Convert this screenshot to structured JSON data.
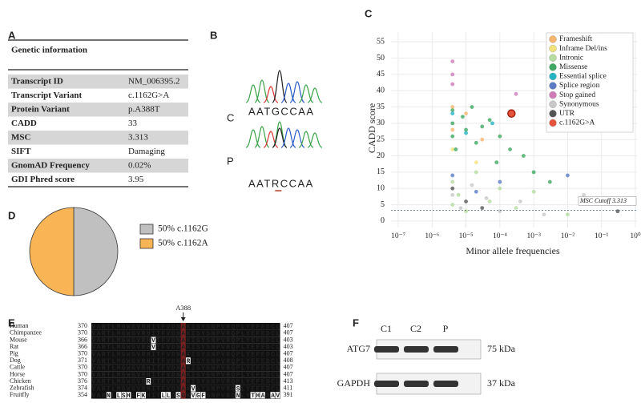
{
  "panel_labels": [
    "A",
    "B",
    "C",
    "D",
    "E",
    "F"
  ],
  "table": {
    "title": "Genetic information",
    "rows": [
      [
        "Transcript ID",
        "NM_006395.2"
      ],
      [
        "Transcript Variant",
        "c.1162G>A"
      ],
      [
        "Protein Variant",
        "p.A388T"
      ],
      [
        "CADD",
        "33"
      ],
      [
        "MSC",
        "3.313"
      ],
      [
        "SIFT",
        "Damaging"
      ],
      [
        "GnomAD Frequency",
        "0.02%"
      ],
      [
        "GDI Phred score",
        "3.95"
      ]
    ]
  },
  "chromatogram": {
    "rows": [
      {
        "label": "C",
        "sequence": "AATGCCAA"
      },
      {
        "label": "P",
        "sequence": "AATRCCAA"
      }
    ]
  },
  "chart_data": [
    {
      "type": "scatter",
      "xlabel": "Minor allele frequencies",
      "ylabel": "CADD score",
      "log_x": true,
      "xlim": [
        1e-07,
        1
      ],
      "xticks": [
        {
          "value": 1e-07,
          "label": "10⁻⁷"
        },
        {
          "value": 1e-06,
          "label": "10⁻⁶"
        },
        {
          "value": 1e-05,
          "label": "10⁻⁵"
        },
        {
          "value": 0.0001,
          "label": "10⁻⁴"
        },
        {
          "value": 0.001,
          "label": "10⁻³"
        },
        {
          "value": 0.01,
          "label": "10⁻²"
        },
        {
          "value": 0.1,
          "label": "10⁻¹"
        },
        {
          "value": 1,
          "label": "10⁰"
        }
      ],
      "ylim": [
        -2,
        58
      ],
      "yticks": [
        0,
        5,
        10,
        15,
        20,
        25,
        30,
        35,
        40,
        45,
        50,
        55
      ],
      "grid": true,
      "legend": "upper right",
      "cutoff": 3.313,
      "cutoff_label": "MSC Cutoff 3.313",
      "series": [
        {
          "name": "Frameshift",
          "color": "#f7b56e",
          "x": [
            4e-06,
            4e-06,
            1e-05,
            3e-05
          ],
          "values": [
            35,
            28,
            33,
            25
          ]
        },
        {
          "name": "Inframe Del/ins",
          "color": "#f2e27a",
          "x": [
            4e-06,
            2e-05
          ],
          "values": [
            22,
            18
          ]
        },
        {
          "name": "Intronic",
          "color": "#b7dba0",
          "x": [
            4e-06,
            4e-06,
            6e-06,
            1e-05,
            2e-05,
            5e-05,
            0.0001,
            0.0003,
            0.001,
            0.01
          ],
          "values": [
            5,
            12,
            8,
            3,
            15,
            6,
            10,
            4,
            9,
            2
          ]
        },
        {
          "name": "Missense",
          "color": "#3fa862",
          "x": [
            4e-06,
            4e-06,
            4e-06,
            5e-06,
            8e-06,
            1e-05,
            1.5e-05,
            2e-05,
            3e-05,
            5e-05,
            8e-05,
            0.0001,
            0.0002,
            0.0005,
            0.001,
            0.003
          ],
          "values": [
            34,
            30,
            26,
            22,
            32,
            28,
            35,
            24,
            29,
            31,
            18,
            26,
            22,
            20,
            15,
            12
          ]
        },
        {
          "name": "Essential splice",
          "color": "#25b4c2",
          "x": [
            4e-06,
            1e-05,
            6e-05
          ],
          "values": [
            33,
            27,
            30
          ]
        },
        {
          "name": "Splice region",
          "color": "#5a7cc4",
          "x": [
            4e-06,
            2e-05,
            0.0001,
            0.01,
            0.2
          ],
          "values": [
            14,
            9,
            12,
            14,
            6
          ]
        },
        {
          "name": "Stop gained",
          "color": "#d07ab8",
          "x": [
            4e-06,
            4e-06,
            4e-06,
            0.0003
          ],
          "values": [
            49,
            45,
            42,
            39
          ]
        },
        {
          "name": "Synonymous",
          "color": "#c8c8c8",
          "x": [
            4e-06,
            7e-06,
            1.5e-05,
            4e-05,
            0.0001,
            0.0004,
            0.002,
            0.03
          ],
          "values": [
            8,
            4,
            11,
            7,
            3,
            6,
            2,
            8
          ]
        },
        {
          "name": "UTR",
          "color": "#555555",
          "x": [
            4e-06,
            1e-05,
            3e-05,
            0.3
          ],
          "values": [
            10,
            6,
            4,
            3
          ]
        },
        {
          "name": "c.1162G>A",
          "color": "#e5533d",
          "x": [
            0.00022
          ],
          "values": [
            33
          ]
        }
      ]
    },
    {
      "type": "pie",
      "categories": [
        "50% c.1162G",
        "50% c.1162A"
      ],
      "values": [
        50,
        50
      ],
      "colors": [
        "#c0c0c0",
        "#f9b555"
      ]
    }
  ],
  "alignment": {
    "marker": "A388",
    "rows": [
      {
        "species": "Human",
        "start": 370,
        "sequence": "VARTLMGWGVRHITFVDNAKISYSNPVRQPLYEFEDCL",
        "end": 407
      },
      {
        "species": "Chimpanzee",
        "start": 370,
        "sequence": "VARTLMGWGVRHITFVDNAKISYSNPVRQPLYEFEDCL",
        "end": 407
      },
      {
        "species": "Mouse",
        "start": 366,
        "sequence": "VARTLMGWGVRHVTFVDNAKISYSNPVRQPLYEFEDCL",
        "end": 403
      },
      {
        "species": "Rat",
        "start": 366,
        "sequence": "VARTLMGWGVRHVTFVDNAKISYSNPVRQPLYEFEDCL",
        "end": 403
      },
      {
        "species": "Pig",
        "start": 370,
        "sequence": "VARTLMGWGVRHITFVDNAKISYSNPVRQPLYEFEDCL",
        "end": 407
      },
      {
        "species": "Dog",
        "start": 371,
        "sequence": "VARTLMGWGVRHITFVDNARISYSNPVRQPLYEFEDCL",
        "end": 408
      },
      {
        "species": "Cattle",
        "start": 370,
        "sequence": "VARTLMGWGVRHITFVDNAKISYSNPVRQPLYEFEDCL",
        "end": 407
      },
      {
        "species": "Horse",
        "start": 370,
        "sequence": "VARTLMGWGVRHITFVDNAKISYSNPVRQPLYEFEDCL",
        "end": 407
      },
      {
        "species": "Chicken",
        "start": 376,
        "sequence": "VARTLMGWGVRRITFVDNAKISYSNPVRQPLYEFEDCL",
        "end": 413
      },
      {
        "species": "Zebrafish",
        "start": 374,
        "sequence": "VARTLMGWGVRHITFVDNAKVSYSNPVRQSLYEFEDCL",
        "end": 411
      },
      {
        "species": "Fruitfly",
        "start": 354,
        "sequence": "VARNLLSHGFKHITLLDSGKVGFSNPVRQNLYTHADAV",
        "end": 391
      }
    ]
  },
  "western_blot": {
    "lanes": [
      "C1",
      "C2",
      "P"
    ],
    "rows": [
      {
        "protein": "ATG7",
        "size": "75 kDa"
      },
      {
        "protein": "GAPDH",
        "size": "37 kDa"
      }
    ]
  }
}
